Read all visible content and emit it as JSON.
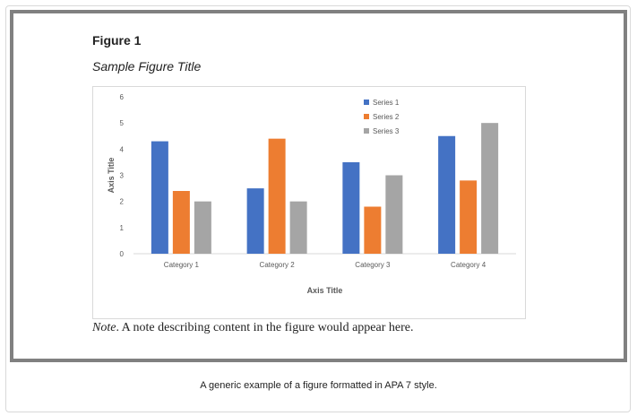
{
  "figure": {
    "label": "Figure 1",
    "title": "Sample Figure Title",
    "note_prefix": "Note",
    "note_text": ". A note describing content in the figure would appear here."
  },
  "caption": "A generic example of a figure formatted in APA 7 style.",
  "chart_data": {
    "type": "bar",
    "categories": [
      "Category 1",
      "Category 2",
      "Category 3",
      "Category 4"
    ],
    "series": [
      {
        "name": "Series 1",
        "values": [
          4.3,
          2.5,
          3.5,
          4.5
        ],
        "color": "#4472C4"
      },
      {
        "name": "Series 2",
        "values": [
          2.4,
          4.4,
          1.8,
          2.8
        ],
        "color": "#ED7D31"
      },
      {
        "name": "Series 3",
        "values": [
          2,
          2,
          3,
          5
        ],
        "color": "#A5A5A5"
      }
    ],
    "xlabel": "Axis Title",
    "ylabel": "Axis Title",
    "ylim": [
      0,
      6
    ],
    "yticks": [
      0,
      1,
      2,
      3,
      4,
      5,
      6
    ],
    "grid": false,
    "legend_position": "top-right"
  }
}
